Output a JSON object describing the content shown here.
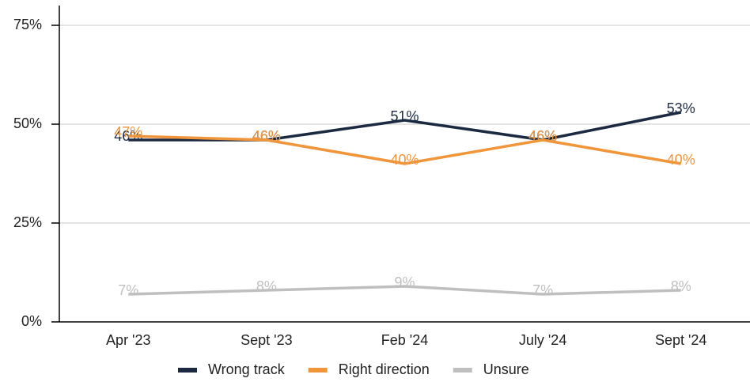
{
  "chart_data": {
    "type": "line",
    "categories": [
      "Apr '23",
      "Sept '23",
      "Feb '24",
      "July '24",
      "Sept '24"
    ],
    "series": [
      {
        "name": "Wrong track",
        "color": "#1b2a41",
        "values": [
          46,
          46,
          51,
          46,
          53
        ],
        "value_labels": [
          "46%",
          "46%",
          "51%",
          "46%",
          "53%"
        ]
      },
      {
        "name": "Right direction",
        "color": "#f0953a",
        "values": [
          47,
          46,
          40,
          46,
          40
        ],
        "value_labels": [
          "47%",
          "46%",
          "40%",
          "46%",
          "40%"
        ]
      },
      {
        "name": "Unsure",
        "color": "#bfbfbf",
        "values": [
          7,
          8,
          9,
          7,
          8
        ],
        "value_labels": [
          "7%",
          "8%",
          "9%",
          "7%",
          "8%"
        ]
      }
    ],
    "ylim": [
      0,
      80
    ],
    "yticks": [
      {
        "value": 0,
        "label": "0%"
      },
      {
        "value": 25,
        "label": "25%"
      },
      {
        "value": 50,
        "label": "50%"
      },
      {
        "value": 75,
        "label": "75%"
      }
    ],
    "grid": true,
    "legend": "bottom"
  }
}
